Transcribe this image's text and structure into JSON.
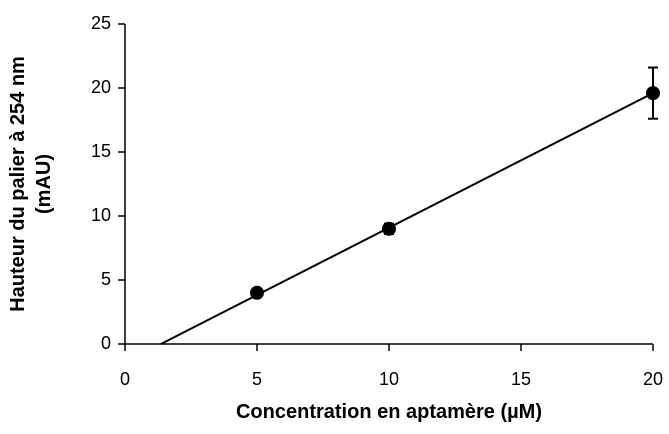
{
  "chart_data": {
    "type": "scatter",
    "xlabel": "Concentration en aptamère (µM)",
    "ylabel": [
      "Hauteur du palier à 254 nm",
      "(mAU)"
    ],
    "x": [
      5,
      10,
      20
    ],
    "series": [
      {
        "color": "#000000",
        "values": [
          4.0,
          9.0,
          19.6
        ],
        "errors": [
          0.2,
          0.4,
          2.0
        ]
      }
    ],
    "fit": {
      "color": "#000000",
      "x": [
        1.36,
        20
      ],
      "values": [
        0,
        19.6
      ]
    },
    "xlim": [
      0,
      20
    ],
    "xticks": [
      0,
      5,
      10,
      15,
      20
    ],
    "ylim": [
      0,
      25
    ],
    "yticks": [
      0,
      5,
      10,
      15,
      20,
      25
    ]
  }
}
